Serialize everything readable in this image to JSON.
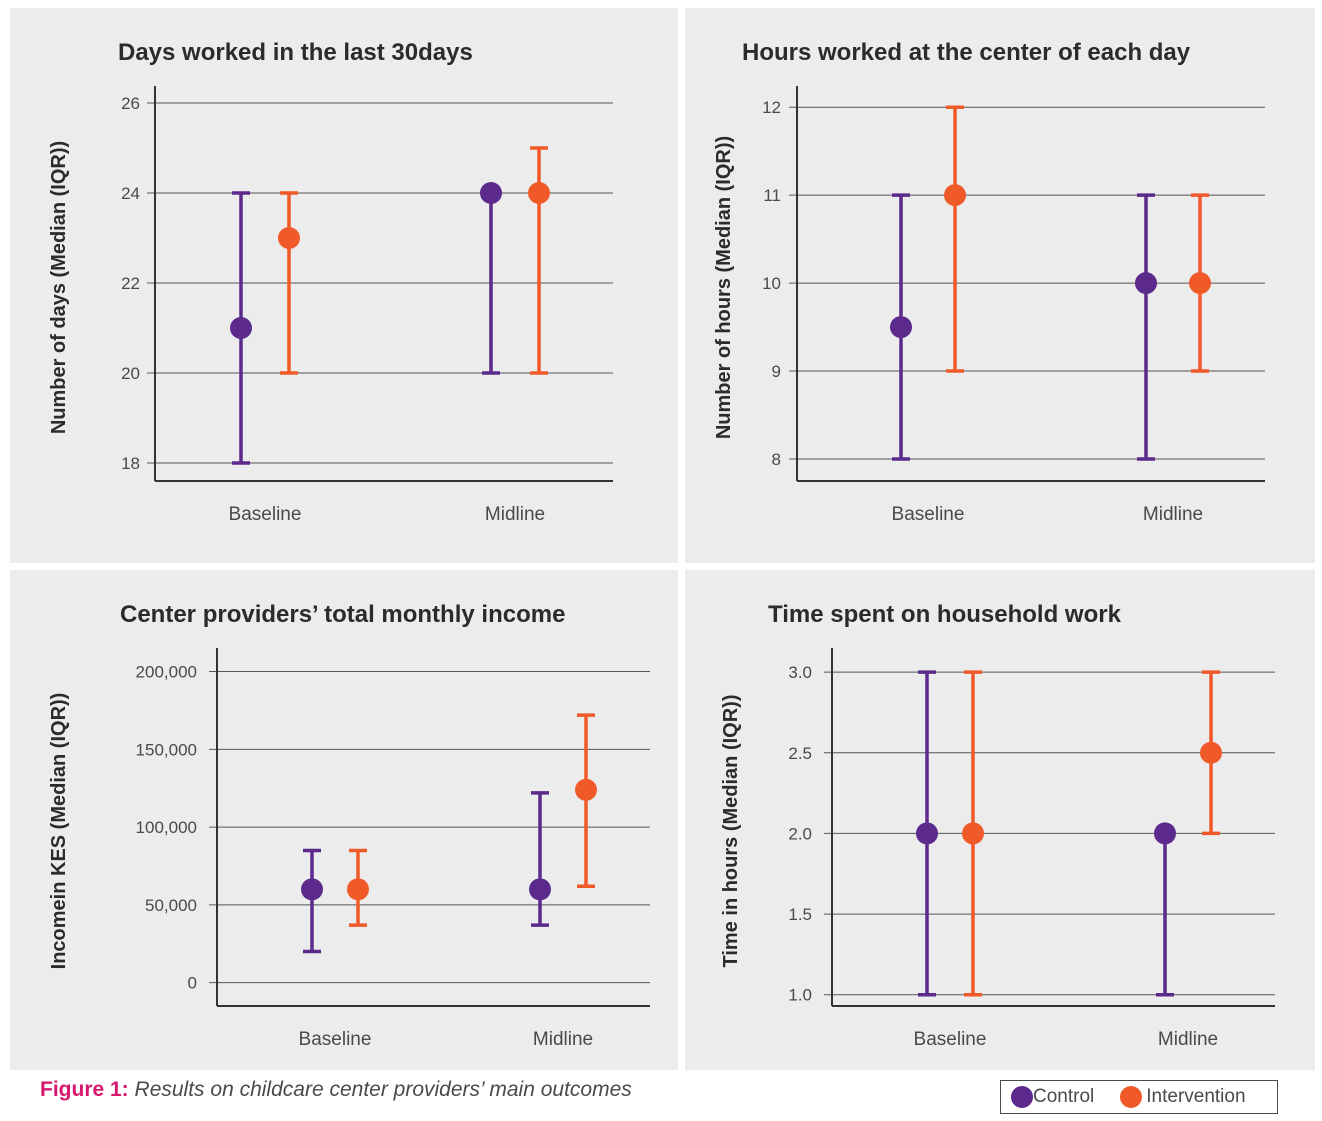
{
  "colors": {
    "control": "#5b2a8c",
    "intervention": "#f05a28",
    "text": "#4a4a4a",
    "grid": "#555555"
  },
  "caption": {
    "label": "Figure 1:",
    "text": "Results on childcare center providers’ main outcomes"
  },
  "legend": {
    "control": "Control",
    "intervention": "Intervention"
  },
  "chart_data": [
    {
      "type": "scatter",
      "title": "Days worked in the last 30days",
      "ylabel": "Number of days (Median (IQR))",
      "categories": [
        "Baseline",
        "Midline"
      ],
      "ylim": [
        17.6,
        26.2
      ],
      "yticks": [
        18,
        20,
        22,
        24,
        26
      ],
      "ytick_labels": [
        "18",
        "20",
        "22",
        "24",
        "26"
      ],
      "series": [
        {
          "name": "Control",
          "median": [
            21,
            24
          ],
          "q1": [
            18,
            20
          ],
          "q3": [
            24,
            24
          ]
        },
        {
          "name": "Intervention",
          "median": [
            23,
            24
          ],
          "q1": [
            20,
            20
          ],
          "q3": [
            24,
            25
          ]
        }
      ]
    },
    {
      "type": "scatter",
      "title": "Hours worked at the center of each day",
      "ylabel": "Number of hours (Median (IQR))",
      "categories": [
        "Baseline",
        "Midline"
      ],
      "ylim": [
        7.75,
        12.15
      ],
      "yticks": [
        8,
        9,
        10,
        11,
        12
      ],
      "ytick_labels": [
        "8",
        "9",
        "10",
        "11",
        "12"
      ],
      "series": [
        {
          "name": "Control",
          "median": [
            9.5,
            10
          ],
          "q1": [
            8,
            8
          ],
          "q3": [
            11,
            11
          ]
        },
        {
          "name": "Intervention",
          "median": [
            11,
            10
          ],
          "q1": [
            9,
            9
          ],
          "q3": [
            12,
            11
          ]
        }
      ]
    },
    {
      "type": "scatter",
      "title": "Center providers’ total monthly income",
      "ylabel": "Incomein KES (Median (IQR))",
      "categories": [
        "Baseline",
        "Midline"
      ],
      "ylim": [
        -15000,
        210000
      ],
      "yticks": [
        0,
        50000,
        100000,
        150000,
        200000
      ],
      "ytick_labels": [
        "0",
        "50,000",
        "100,000",
        "150,000",
        "200,000"
      ],
      "series": [
        {
          "name": "Control",
          "median": [
            60000,
            60000
          ],
          "q1": [
            20000,
            37000
          ],
          "q3": [
            85000,
            122000
          ]
        },
        {
          "name": "Intervention",
          "median": [
            60000,
            124000
          ],
          "q1": [
            37000,
            62000
          ],
          "q3": [
            85000,
            172000
          ]
        }
      ]
    },
    {
      "type": "scatter",
      "title": "Time spent on household work",
      "ylabel": "Time in hours (Median (IQR))",
      "categories": [
        "Baseline",
        "Midline"
      ],
      "ylim": [
        0.93,
        3.1
      ],
      "yticks": [
        1.0,
        1.5,
        2.0,
        2.5,
        3.0
      ],
      "ytick_labels": [
        "1.0",
        "1.5",
        "2.0",
        "2.5",
        "3.0"
      ],
      "series": [
        {
          "name": "Control",
          "median": [
            2.0,
            2.0
          ],
          "q1": [
            1.0,
            1.0
          ],
          "q3": [
            3.0,
            2.0
          ]
        },
        {
          "name": "Intervention",
          "median": [
            2.0,
            2.5
          ],
          "q1": [
            1.0,
            2.0
          ],
          "q3": [
            3.0,
            3.0
          ]
        }
      ]
    }
  ]
}
